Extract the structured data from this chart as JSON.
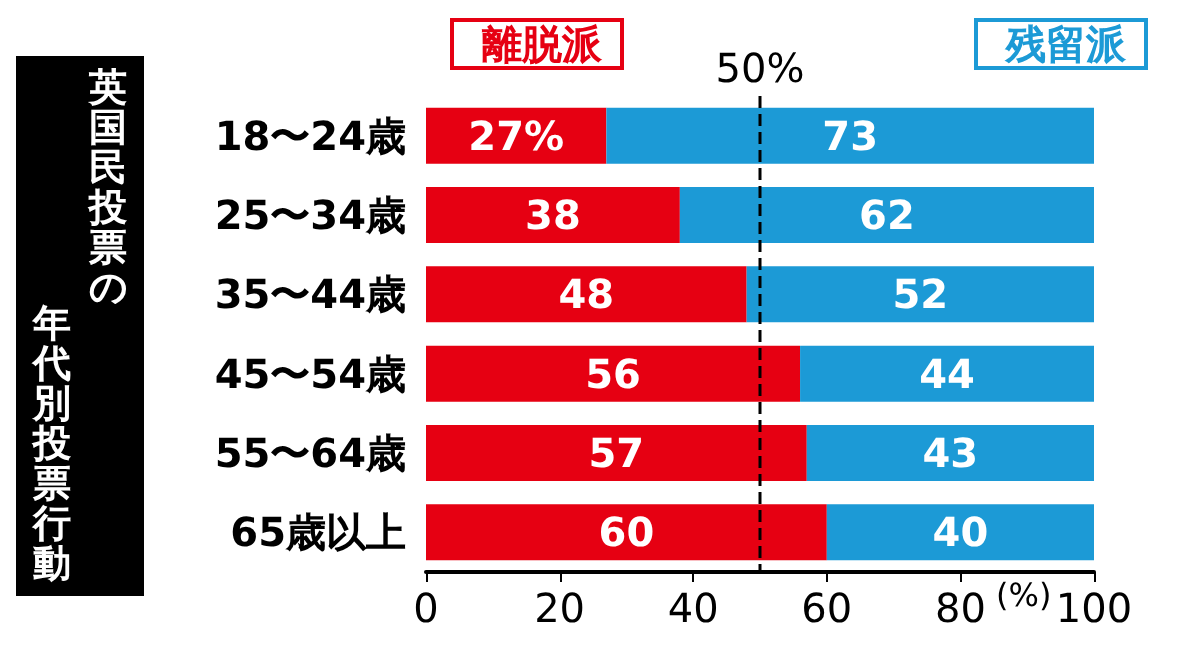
{
  "chart_data": {
    "type": "bar",
    "orientation": "horizontal",
    "stacked": true,
    "title": "英国民投票の年代別投票行動",
    "xlabel": "(%)",
    "categories": [
      "18〜24歳",
      "25〜34歳",
      "35〜44歳",
      "45〜54歳",
      "55〜64歳",
      "65歳以上"
    ],
    "series": [
      {
        "name": "離脱派",
        "color": "#e60012",
        "values": [
          27,
          38,
          48,
          56,
          57,
          60
        ],
        "value_labels": [
          "27%",
          "38",
          "48",
          "56",
          "57",
          "60"
        ]
      },
      {
        "name": "残留派",
        "color": "#1c9ad6",
        "values": [
          73,
          62,
          52,
          44,
          43,
          40
        ],
        "value_labels": [
          "73",
          "62",
          "52",
          "44",
          "43",
          "40"
        ]
      }
    ],
    "xlim": [
      0,
      100
    ],
    "xticks": [
      0,
      20,
      40,
      60,
      80,
      100
    ],
    "ref_lines": [
      {
        "axis": "x",
        "value": 50,
        "label": "50%",
        "line_style": "dashed",
        "color": "#000000"
      }
    ],
    "legend": "top",
    "grid": false
  }
}
